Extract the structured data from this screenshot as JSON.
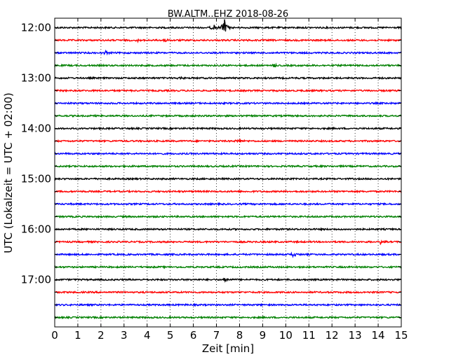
{
  "chart_data": {
    "type": "line",
    "title": "BW.ALTM..EHZ 2018-08-26",
    "xlabel": "Zeit  [min]",
    "ylabel": "UTC (Lokalzeit = UTC + 02:00)",
    "xlim": [
      0,
      15
    ],
    "x_ticks": [
      "0",
      "1",
      "2",
      "3",
      "4",
      "5",
      "6",
      "7",
      "8",
      "9",
      "10",
      "11",
      "12",
      "13",
      "14",
      "15"
    ],
    "grid": "vertical dotted",
    "y_time_labels": [
      "12:00",
      "13:00",
      "14:00",
      "15:00",
      "16:00",
      "17:00"
    ],
    "row_interval_minutes": 15,
    "series": [
      {
        "start": "12:00",
        "color": "#000000",
        "events": [
          {
            "x": 7.35,
            "amp": 12
          },
          {
            "x": 6.9,
            "amp": 4
          }
        ]
      },
      {
        "start": "12:15",
        "color": "#ff0000",
        "events": [
          {
            "x": 4.8,
            "amp": 3
          },
          {
            "x": 8.5,
            "amp": 2
          },
          {
            "x": 3.6,
            "amp": 2
          }
        ]
      },
      {
        "start": "12:30",
        "color": "#0000ff",
        "events": [
          {
            "x": 2.2,
            "amp": 3
          }
        ]
      },
      {
        "start": "12:45",
        "color": "#008000",
        "events": [
          {
            "x": 9.5,
            "amp": 2
          }
        ]
      },
      {
        "start": "13:00",
        "color": "#000000",
        "events": [
          {
            "x": 5.4,
            "amp": 2
          }
        ]
      },
      {
        "start": "13:15",
        "color": "#ff0000",
        "events": []
      },
      {
        "start": "13:30",
        "color": "#0000ff",
        "events": []
      },
      {
        "start": "13:45",
        "color": "#008000",
        "events": []
      },
      {
        "start": "14:00",
        "color": "#000000",
        "events": []
      },
      {
        "start": "14:15",
        "color": "#ff0000",
        "events": [
          {
            "x": 8.0,
            "amp": 2
          }
        ]
      },
      {
        "start": "14:30",
        "color": "#0000ff",
        "events": []
      },
      {
        "start": "14:45",
        "color": "#008000",
        "events": []
      },
      {
        "start": "15:00",
        "color": "#000000",
        "events": []
      },
      {
        "start": "15:15",
        "color": "#ff0000",
        "events": []
      },
      {
        "start": "15:30",
        "color": "#0000ff",
        "events": []
      },
      {
        "start": "15:45",
        "color": "#008000",
        "events": []
      },
      {
        "start": "16:00",
        "color": "#000000",
        "events": []
      },
      {
        "start": "16:15",
        "color": "#ff0000",
        "events": [
          {
            "x": 14.1,
            "amp": 4
          }
        ]
      },
      {
        "start": "16:30",
        "color": "#0000ff",
        "events": [
          {
            "x": 10.35,
            "amp": 4
          }
        ]
      },
      {
        "start": "16:45",
        "color": "#008000",
        "events": []
      },
      {
        "start": "17:00",
        "color": "#000000",
        "events": [
          {
            "x": 7.35,
            "amp": 4
          }
        ]
      },
      {
        "start": "17:15",
        "color": "#ff0000",
        "events": []
      },
      {
        "start": "17:30",
        "color": "#0000ff",
        "events": []
      },
      {
        "start": "17:45",
        "color": "#008000",
        "events": []
      }
    ]
  }
}
